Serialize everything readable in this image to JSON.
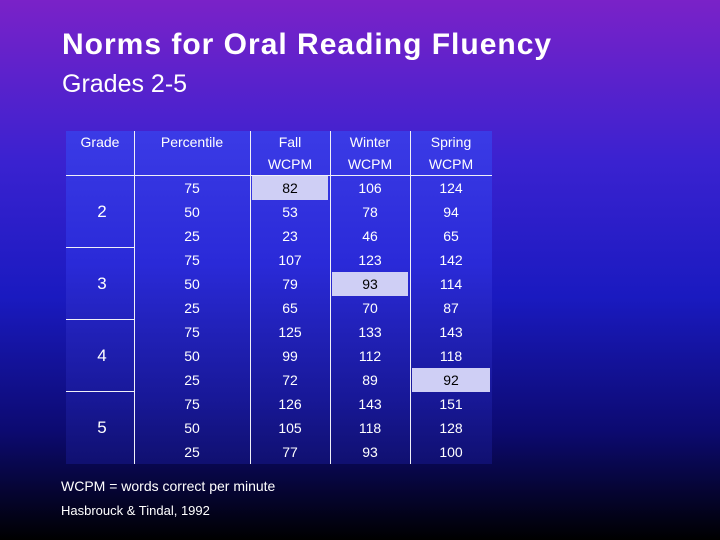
{
  "title": "Norms for Oral Reading Fluency",
  "subtitle": "Grades 2-5",
  "table": {
    "headers": {
      "grade": "Grade",
      "percentile": "Percentile",
      "fall": [
        "Fall",
        "WCPM"
      ],
      "winter": [
        "Winter",
        "WCPM"
      ],
      "spring": [
        "Spring",
        "WCPM"
      ]
    },
    "groups": [
      {
        "grade": "2",
        "rows": [
          {
            "percentile": "75",
            "fall": "82",
            "winter": "106",
            "spring": "124"
          },
          {
            "percentile": "50",
            "fall": "53",
            "winter": "78",
            "spring": "94"
          },
          {
            "percentile": "25",
            "fall": "23",
            "winter": "46",
            "spring": "65"
          }
        ]
      },
      {
        "grade": "3",
        "rows": [
          {
            "percentile": "75",
            "fall": "107",
            "winter": "123",
            "spring": "142"
          },
          {
            "percentile": "50",
            "fall": "79",
            "winter": "93",
            "spring": "114"
          },
          {
            "percentile": "25",
            "fall": "65",
            "winter": "70",
            "spring": "87"
          }
        ]
      },
      {
        "grade": "4",
        "rows": [
          {
            "percentile": "75",
            "fall": "125",
            "winter": "133",
            "spring": "143"
          },
          {
            "percentile": "50",
            "fall": "99",
            "winter": "112",
            "spring": "118"
          },
          {
            "percentile": "25",
            "fall": "72",
            "winter": "89",
            "spring": "92"
          }
        ]
      },
      {
        "grade": "5",
        "rows": [
          {
            "percentile": "75",
            "fall": "126",
            "winter": "143",
            "spring": "151"
          },
          {
            "percentile": "50",
            "fall": "105",
            "winter": "118",
            "spring": "128"
          },
          {
            "percentile": "25",
            "fall": "77",
            "winter": "93",
            "spring": "100"
          }
        ]
      }
    ]
  },
  "footnote": "WCPM = words correct per minute",
  "source": "Hasbrouck & Tindal, 1992"
}
